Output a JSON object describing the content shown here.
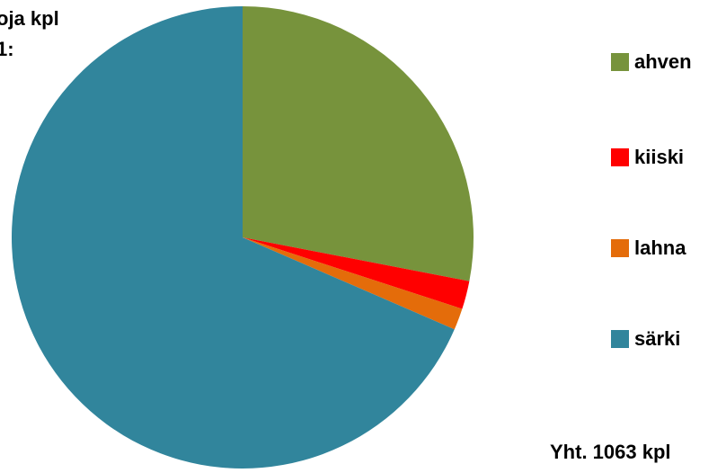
{
  "title_lines": [
    "oja kpl",
    "1:"
  ],
  "total_label": "Yht. 1063 kpl",
  "chart_data": {
    "type": "pie",
    "title": "",
    "categories": [
      "ahven",
      "kiiski",
      "lahna",
      "särki"
    ],
    "values": [
      298,
      21,
      16,
      728
    ],
    "colors": [
      "#77933C",
      "#FF0000",
      "#E46C0A",
      "#31859C"
    ],
    "legend_position": "right"
  }
}
